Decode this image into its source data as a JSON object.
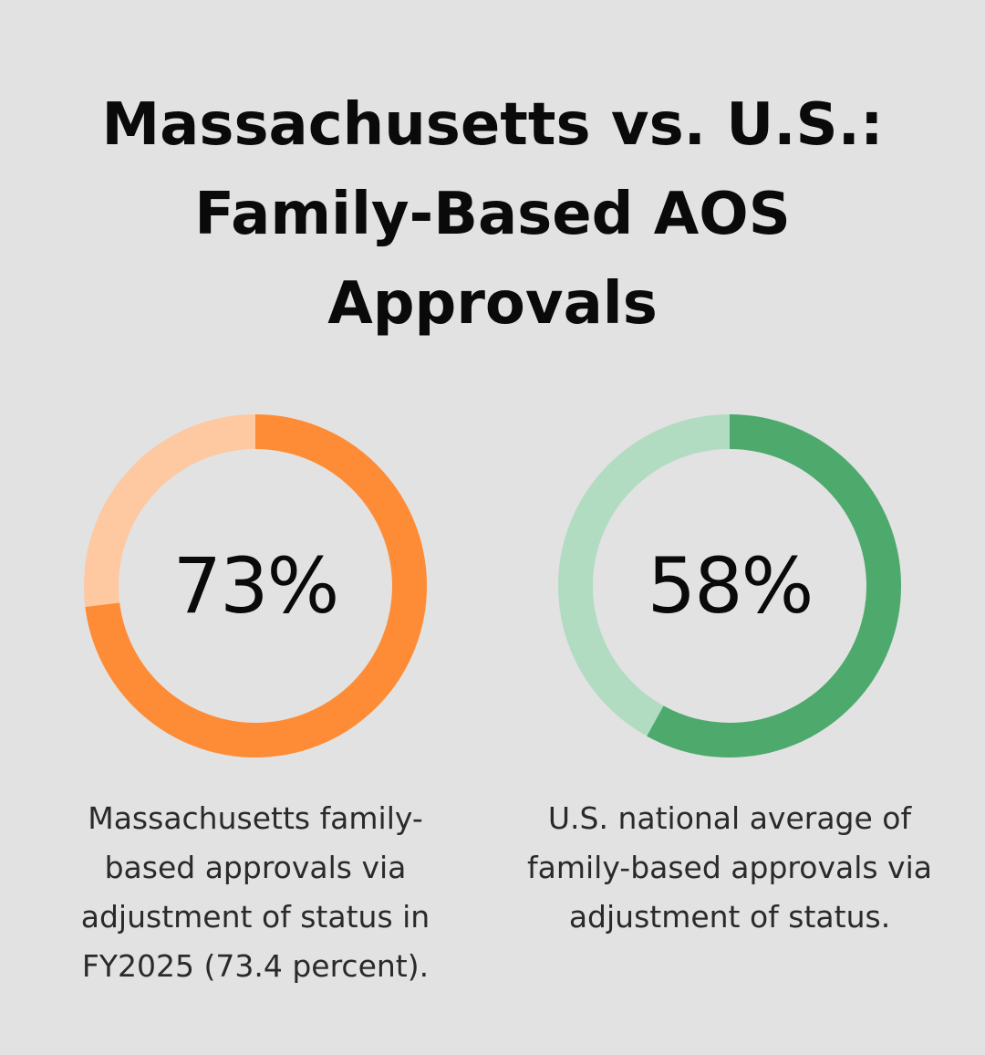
{
  "title_lines": [
    "Massachusetts vs. U.S.:",
    "Family-Based AOS",
    "Approvals"
  ],
  "chart_data": [
    {
      "type": "pie",
      "value": 73,
      "value_label": "73%",
      "caption_lines": [
        "Massachusetts family-",
        "based approvals via",
        "adjustment of status in",
        "FY2025 (73.4 percent)."
      ],
      "color": "#fe8b36",
      "track_color": "#fec8a1"
    },
    {
      "type": "pie",
      "value": 58,
      "value_label": "58%",
      "caption_lines": [
        "U.S. national average of",
        "family-based approvals via",
        "adjustment of status."
      ],
      "color": "#4ea96d",
      "track_color": "#b1dcc2"
    }
  ]
}
